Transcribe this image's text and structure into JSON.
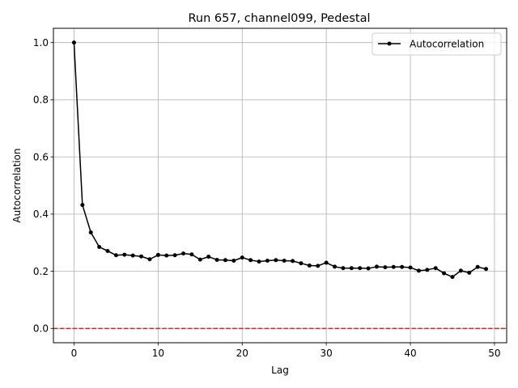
{
  "chart_data": {
    "type": "line",
    "title": "Run 657, channel099, Pedestal",
    "xlabel": "Lag",
    "ylabel": "Autocorrelation",
    "xlim": [
      -2.45,
      51.45
    ],
    "ylim": [
      -0.05,
      1.05
    ],
    "xticks": [
      0,
      10,
      20,
      30,
      40,
      50
    ],
    "yticks": [
      0.0,
      0.2,
      0.4,
      0.6,
      0.8,
      1.0
    ],
    "grid": true,
    "legend_position": "top-right",
    "reference_line": {
      "y": 0.0,
      "color": "#d62728",
      "style": "dashed"
    },
    "series": [
      {
        "name": "Autocorrelation",
        "color": "#000000",
        "marker": "circle",
        "x": [
          0,
          1,
          2,
          3,
          4,
          5,
          6,
          7,
          8,
          9,
          10,
          11,
          12,
          13,
          14,
          15,
          16,
          17,
          18,
          19,
          20,
          21,
          22,
          23,
          24,
          25,
          26,
          27,
          28,
          29,
          30,
          31,
          32,
          33,
          34,
          35,
          36,
          37,
          38,
          39,
          40,
          41,
          42,
          43,
          44,
          45,
          46,
          47,
          48,
          49
        ],
        "values": [
          1.0,
          0.432,
          0.336,
          0.285,
          0.271,
          0.256,
          0.258,
          0.255,
          0.252,
          0.242,
          0.257,
          0.255,
          0.256,
          0.262,
          0.259,
          0.241,
          0.251,
          0.24,
          0.239,
          0.237,
          0.248,
          0.239,
          0.234,
          0.237,
          0.239,
          0.237,
          0.236,
          0.228,
          0.22,
          0.219,
          0.23,
          0.216,
          0.211,
          0.211,
          0.211,
          0.21,
          0.216,
          0.214,
          0.215,
          0.215,
          0.213,
          0.202,
          0.205,
          0.211,
          0.193,
          0.18,
          0.202,
          0.195,
          0.215,
          0.208
        ]
      }
    ]
  }
}
